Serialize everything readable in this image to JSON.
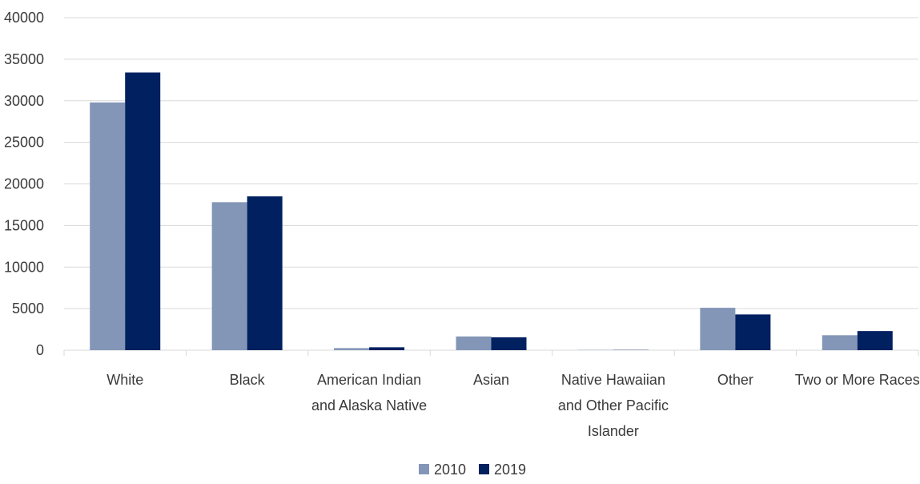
{
  "chart_data": {
    "type": "bar",
    "title": "",
    "xlabel": "",
    "ylabel": "",
    "categories": [
      [
        "White"
      ],
      [
        "Black"
      ],
      [
        "American Indian",
        "and Alaska Native"
      ],
      [
        "Asian"
      ],
      [
        "Native Hawaiian",
        "and Other Pacific",
        "Islander"
      ],
      [
        "Other"
      ],
      [
        "Two or More Races"
      ]
    ],
    "series": [
      {
        "name": "2010",
        "color": "#8496b8",
        "values": [
          29800,
          17800,
          250,
          1650,
          30,
          5100,
          1800
        ]
      },
      {
        "name": "2019",
        "color": "#002060",
        "values": [
          33400,
          18500,
          350,
          1550,
          30,
          4300,
          2300
        ]
      }
    ],
    "ylim": [
      0,
      40000
    ],
    "yticks": [
      0,
      5000,
      10000,
      15000,
      20000,
      25000,
      30000,
      35000,
      40000
    ],
    "grid": true,
    "legend": "bottom-center"
  }
}
